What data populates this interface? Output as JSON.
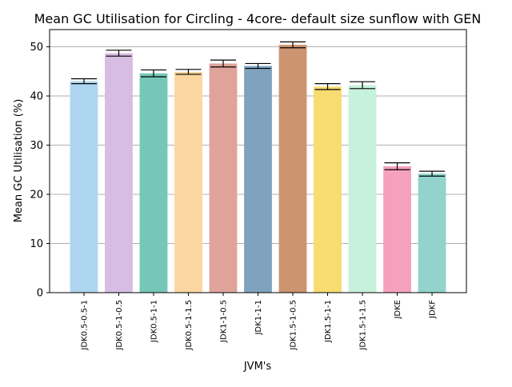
{
  "chart_data": {
    "type": "bar",
    "title": "Mean GC Utilisation for Circling - 4core- default size sunflow with GEN",
    "xlabel": "JVM's",
    "ylabel": "Mean GC Utilisation (%)",
    "ylim": [
      0,
      53.5
    ],
    "yticks": [
      0,
      10,
      20,
      30,
      40,
      50
    ],
    "grid": true,
    "categories": [
      "JDK0.5-0.5-1",
      "JDK0.5-1-0.5",
      "JDK0.5-1-1",
      "JDK0.5-1-1.5",
      "JDK1-1-0.5",
      "JDK1-1-1",
      "JDK1.5-1-0.5",
      "JDK1.5-1-1",
      "JDK1.5-1-1.5",
      "JDKE",
      "JDKF"
    ],
    "values": [
      43.0,
      48.7,
      44.6,
      44.9,
      46.6,
      46.1,
      50.4,
      41.9,
      42.2,
      25.7,
      24.2
    ],
    "errors": [
      0.5,
      0.6,
      0.7,
      0.5,
      0.7,
      0.5,
      0.6,
      0.6,
      0.7,
      0.7,
      0.5
    ],
    "colors": [
      "#aed6f1",
      "#d7bde2",
      "#76c7b7",
      "#fad7a0",
      "#dfa39a",
      "#7fa3bd",
      "#cc9470",
      "#f7dc6f",
      "#c6f2db",
      "#f5a0bd",
      "#92d4cc"
    ]
  }
}
